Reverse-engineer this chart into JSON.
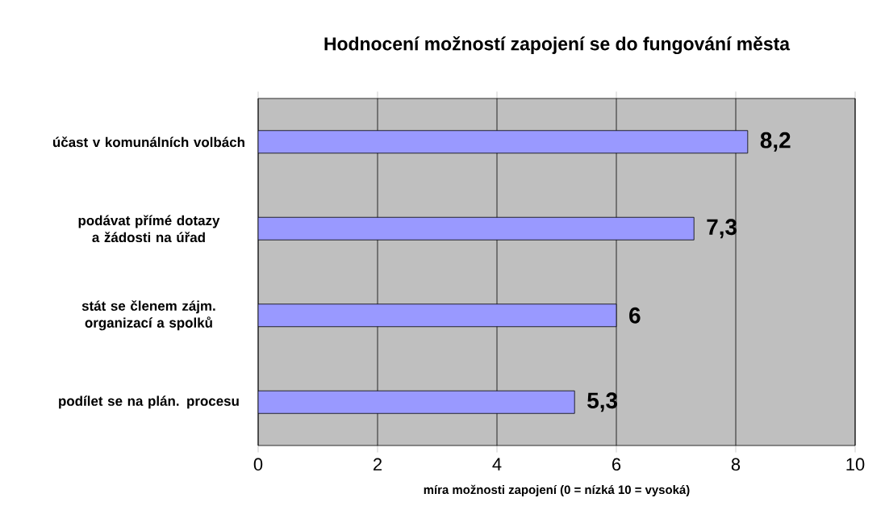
{
  "chart_data": {
    "type": "bar",
    "orientation": "horizontal",
    "title": "Hodnocení možností zapojení se do fungování města",
    "xlabel": "míra možnosti zapojení  (0 = nízká 10 = vysoká)",
    "categories": [
      "účast v komunálních volbách",
      "podávat přímé dotazy a žádosti na úřad",
      "stát se členem zájm. organizací a spolků",
      "podílet se na plán. procesu"
    ],
    "values": [
      8.2,
      7.3,
      6,
      5.3
    ],
    "color": "#9999ff",
    "xlim": [
      0,
      10
    ],
    "xticks": [
      0,
      2,
      4,
      6,
      8,
      10
    ],
    "grid": "x",
    "value_labels": [
      "8,2",
      "7,3",
      "6",
      "5,3"
    ]
  }
}
